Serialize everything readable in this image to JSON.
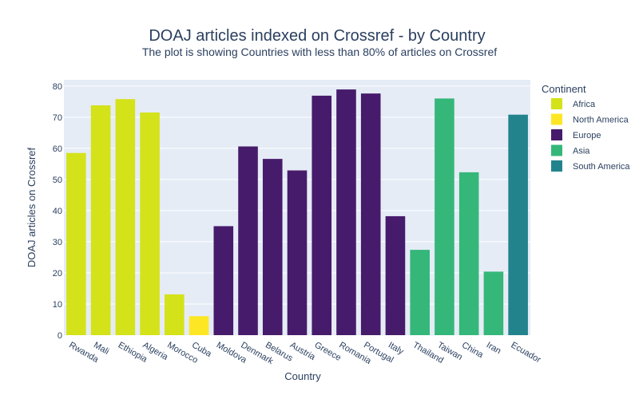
{
  "chart_data": {
    "type": "bar",
    "title": "DOAJ articles indexed on Crossref - by Country",
    "subtitle": "The plot is showing Countries with less than 80% of articles on Crossref",
    "xlabel": "Country",
    "ylabel": "DOAJ articles on Crossref",
    "ylim": [
      0,
      82
    ],
    "yticks": [
      0,
      10,
      20,
      30,
      40,
      50,
      60,
      70,
      80
    ],
    "grid": true,
    "legend": {
      "title": "Continent",
      "placement": "right",
      "entries": [
        {
          "name": "Africa",
          "color": "#d4e21a"
        },
        {
          "name": "North America",
          "color": "#fde725"
        },
        {
          "name": "Europe",
          "color": "#471b6b"
        },
        {
          "name": "Asia",
          "color": "#35b779"
        },
        {
          "name": "South America",
          "color": "#22838d"
        }
      ]
    },
    "bars": [
      {
        "category": "Rwanda",
        "value": 58.5,
        "group": "Africa"
      },
      {
        "category": "Mali",
        "value": 73.8,
        "group": "Africa"
      },
      {
        "category": "Ethiopia",
        "value": 75.8,
        "group": "Africa"
      },
      {
        "category": "Algeria",
        "value": 71.5,
        "group": "Africa"
      },
      {
        "category": "Morocco",
        "value": 13.1,
        "group": "Africa"
      },
      {
        "category": "Cuba",
        "value": 6.1,
        "group": "North America"
      },
      {
        "category": "Moldova",
        "value": 35.0,
        "group": "Europe"
      },
      {
        "category": "Denmark",
        "value": 60.6,
        "group": "Europe"
      },
      {
        "category": "Belarus",
        "value": 56.6,
        "group": "Europe"
      },
      {
        "category": "Austria",
        "value": 52.9,
        "group": "Europe"
      },
      {
        "category": "Greece",
        "value": 76.9,
        "group": "Europe"
      },
      {
        "category": "Romania",
        "value": 78.9,
        "group": "Europe"
      },
      {
        "category": "Portugal",
        "value": 77.6,
        "group": "Europe"
      },
      {
        "category": "Italy",
        "value": 38.2,
        "group": "Europe"
      },
      {
        "category": "Thailand",
        "value": 27.4,
        "group": "Asia"
      },
      {
        "category": "Taiwan",
        "value": 76.0,
        "group": "Asia"
      },
      {
        "category": "China",
        "value": 52.3,
        "group": "Asia"
      },
      {
        "category": "Iran",
        "value": 20.4,
        "group": "Asia"
      },
      {
        "category": "Ecuador",
        "value": 70.8,
        "group": "South America"
      }
    ]
  }
}
